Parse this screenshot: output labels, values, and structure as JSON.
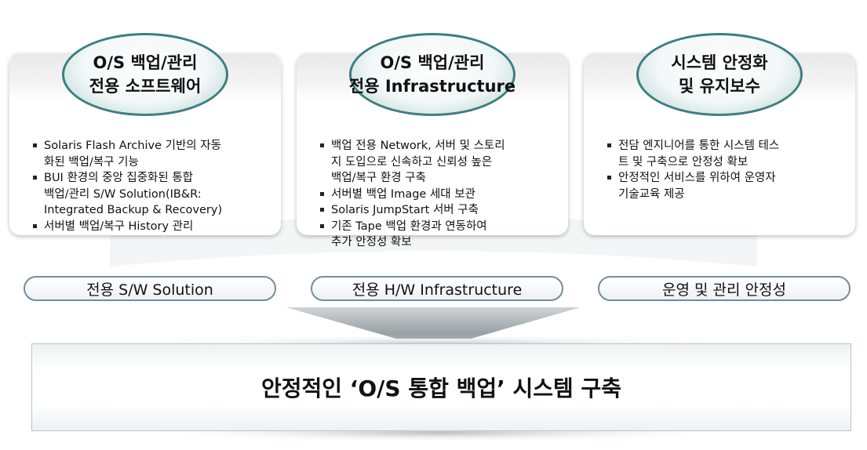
{
  "columns": [
    {
      "title": [
        "O/S 백업/관리",
        "전용 소프트웨어"
      ],
      "bullets": [
        [
          "Solaris Flash Archive 기반의 자동",
          "화된 백업/복구 기능"
        ],
        [
          "BUI 환경의 중앙 집중화된 통합",
          "백업/관리 S/W Solution(IB&R:",
          "Integrated Backup & Recovery)"
        ],
        [
          "서버별 백업/복구 History 관리"
        ]
      ],
      "label": "전용 S/W Solution"
    },
    {
      "title": [
        "O/S 백업/관리",
        "전용 Infrastructure"
      ],
      "bullets": [
        [
          "백업 전용 Network, 서버 및 스토리",
          "지 도입으로 신속하고 신뢰성 높은",
          "백업/복구 환경 구축"
        ],
        [
          "서버별 백업 Image 세대 보관"
        ],
        [
          "Solaris JumpStart 서버 구축"
        ],
        [
          "기존 Tape 백업 환경과 연동하여",
          "추가 안정성 확보"
        ]
      ],
      "label": "전용 H/W Infrastructure"
    },
    {
      "title": [
        "시스템 안정화",
        "및 유지보수"
      ],
      "bullets": [
        [
          "전담 엔지니어를 통한 시스템 테스",
          "트 및 구축으로 안정성 확보"
        ],
        [
          "안정적인 서비스를 위하여 운영자",
          "기술교육 제공"
        ]
      ],
      "label": "운영 및 관리 안정성"
    }
  ],
  "banner": "안정적인 ‘O/S 통합 백업’ 시스템 구축"
}
